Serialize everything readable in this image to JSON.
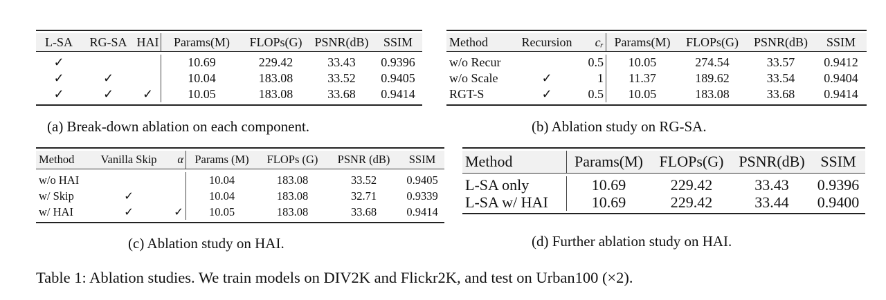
{
  "tables": [
    {
      "id": "a",
      "caption": "(a)  Break-down ablation on each component.",
      "headers": [
        "L-SA",
        "RG-SA",
        "HAI",
        "Params(M)",
        "FLOPs(G)",
        "PSNR(dB)",
        "SSIM"
      ],
      "rows": [
        [
          "✓",
          "",
          "",
          "10.69",
          "229.42",
          "33.43",
          "0.9396"
        ],
        [
          "✓",
          "✓",
          "",
          "10.04",
          "183.08",
          "33.52",
          "0.9405"
        ],
        [
          "✓",
          "✓",
          "✓",
          "10.05",
          "183.08",
          "33.68",
          "0.9414"
        ]
      ]
    },
    {
      "id": "b",
      "caption": "(b)  Ablation study on RG-SA.",
      "headers": [
        "Method",
        "Recursion",
        "cᵣ",
        "Params(M)",
        "FLOPs(G)",
        "PSNR(dB)",
        "SSIM"
      ],
      "rows": [
        [
          "w/o Recur",
          "",
          "0.5",
          "10.05",
          "274.54",
          "33.57",
          "0.9412"
        ],
        [
          "w/o Scale",
          "✓",
          "1",
          "11.37",
          "189.62",
          "33.54",
          "0.9404"
        ],
        [
          "RGT-S",
          "✓",
          "0.5",
          "10.05",
          "183.08",
          "33.68",
          "0.9414"
        ]
      ]
    },
    {
      "id": "c",
      "caption": "(c)  Ablation study on HAI.",
      "headers": [
        "Method",
        "Vanilla Skip",
        "α",
        "Params (M)",
        "FLOPs (G)",
        "PSNR (dB)",
        "SSIM"
      ],
      "rows": [
        [
          "w/o HAI",
          "",
          "",
          "10.04",
          "183.08",
          "33.52",
          "0.9405"
        ],
        [
          "w/ Skip",
          "✓",
          "",
          "10.04",
          "183.08",
          "32.71",
          "0.9339"
        ],
        [
          "w/ HAI",
          "✓",
          "✓",
          "10.05",
          "183.08",
          "33.68",
          "0.9414"
        ]
      ]
    },
    {
      "id": "d",
      "caption": "(d)  Further ablation study on HAI.",
      "headers": [
        "Method",
        "Params(M)",
        "FLOPs(G)",
        "PSNR(dB)",
        "SSIM"
      ],
      "rows": [
        [
          "L-SA only",
          "10.69",
          "229.42",
          "33.43",
          "0.9396"
        ],
        [
          "L-SA w/ HAI",
          "10.69",
          "229.42",
          "33.44",
          "0.9400"
        ]
      ]
    }
  ],
  "main_caption": "Table 1: Ablation studies. We train models on DIV2K and Flickr2K, and test on Urban100 (×2)."
}
